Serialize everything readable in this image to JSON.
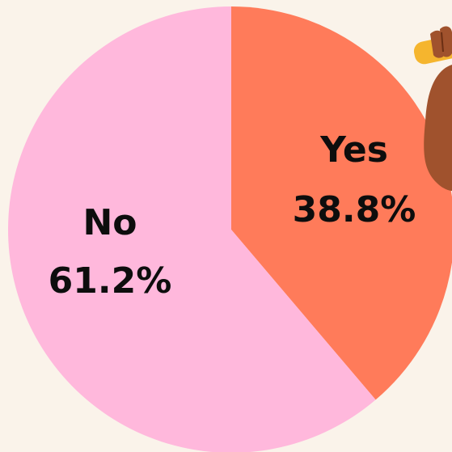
{
  "chart_data": {
    "type": "pie",
    "title": "",
    "slices": [
      {
        "label": "Yes",
        "value": 38.8,
        "value_text": "38.8%",
        "color": "#ff7b5a"
      },
      {
        "label": "No",
        "value": 61.2,
        "value_text": "61.2%",
        "color": "#ffb8dc"
      }
    ],
    "start_angle": "12 o'clock",
    "direction": "clockwise",
    "legend": "none"
  },
  "colors": {
    "background": "#faf3ea",
    "hand_skin": "#a0522d",
    "object_in_hand": "#f5b52e"
  },
  "decoration": {
    "icon": "raised-hand-holding-object-icon"
  }
}
